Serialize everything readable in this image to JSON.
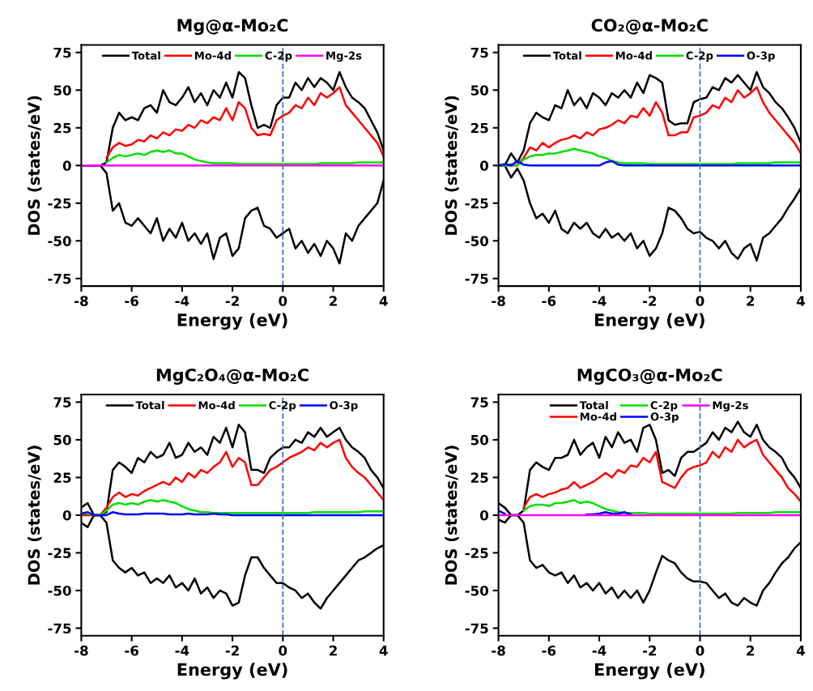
{
  "chart_data": [
    {
      "type": "line",
      "title": "Mg@α-Mo₂C",
      "xlabel": "Energy (eV)",
      "ylabel": "DOS (states/eV)",
      "xlim": [
        -8,
        4
      ],
      "xticks": [
        -8,
        -6,
        -4,
        -2,
        0,
        2,
        4
      ],
      "ylim": [
        -80,
        80
      ],
      "yticks": [
        -75,
        -50,
        -25,
        0,
        25,
        50,
        75
      ],
      "grid": false,
      "legend": "top",
      "marker": "none",
      "line_style": "solid",
      "ref_lines": [
        {
          "axis": "x",
          "value": 0,
          "color": "#4472c4",
          "line_style": "dashed"
        }
      ],
      "x": [
        -8,
        -7.75,
        -7.5,
        -7.25,
        -7,
        -6.75,
        -6.5,
        -6.25,
        -6,
        -5.75,
        -5.5,
        -5.25,
        -5,
        -4.75,
        -4.5,
        -4.25,
        -4,
        -3.75,
        -3.5,
        -3.25,
        -3,
        -2.75,
        -2.5,
        -2.25,
        -2,
        -1.75,
        -1.5,
        -1.25,
        -1,
        -0.75,
        -0.5,
        -0.25,
        0,
        0.25,
        0.5,
        0.75,
        1,
        1.25,
        1.5,
        1.75,
        2,
        2.25,
        2.5,
        2.75,
        3,
        3.25,
        3.5,
        3.75,
        4
      ],
      "series": [
        {
          "name": "Total",
          "color": "#000000",
          "values": [
            0,
            0,
            0,
            0,
            2,
            25,
            35,
            30,
            32,
            30,
            38,
            40,
            35,
            50,
            42,
            40,
            45,
            52,
            42,
            48,
            40,
            50,
            45,
            55,
            45,
            62,
            58,
            40,
            25,
            27,
            25,
            40,
            45,
            45,
            55,
            50,
            58,
            52,
            58,
            55,
            50,
            62,
            52,
            45,
            42,
            38,
            30,
            22,
            10
          ]
        },
        {
          "color": "#000000",
          "values": [
            0,
            0,
            0,
            0,
            -5,
            -30,
            -25,
            -38,
            -40,
            -35,
            -40,
            -45,
            -35,
            -50,
            -42,
            -48,
            -38,
            -50,
            -45,
            -52,
            -45,
            -62,
            -48,
            -45,
            -60,
            -55,
            -35,
            -30,
            -28,
            -40,
            -42,
            -48,
            -45,
            -42,
            -55,
            -50,
            -58,
            -52,
            -60,
            -50,
            -55,
            -65,
            -45,
            -50,
            -40,
            -35,
            -30,
            -25,
            -10
          ]
        },
        {
          "name": "Mo-4d",
          "color": "#ff0000",
          "values": [
            null,
            null,
            null,
            null,
            5,
            12,
            15,
            13,
            14,
            17,
            16,
            20,
            18,
            22,
            20,
            24,
            23,
            27,
            25,
            30,
            28,
            32,
            30,
            38,
            30,
            42,
            38,
            25,
            20,
            21,
            20,
            30,
            33,
            35,
            40,
            38,
            45,
            40,
            48,
            45,
            48,
            52,
            40,
            35,
            30,
            25,
            20,
            15,
            6
          ]
        },
        {
          "name": "C-2p",
          "color": "#00e000",
          "values": [
            null,
            null,
            null,
            null,
            2,
            5,
            7,
            6,
            7,
            8,
            7,
            9,
            10,
            9,
            10,
            8,
            8,
            6,
            4,
            3,
            2,
            1.5,
            1.5,
            1.5,
            1.5,
            1,
            1,
            1,
            1,
            1,
            1,
            1,
            1,
            1,
            1,
            1,
            1,
            1,
            1.5,
            1.5,
            1.5,
            1.5,
            1.5,
            1.5,
            2,
            2,
            2,
            2,
            2
          ]
        },
        {
          "name": "Mg-2s",
          "color": "#ff00ff",
          "values": [
            0,
            0,
            0,
            0,
            0,
            0,
            0,
            0,
            0,
            0,
            0,
            0,
            0,
            0,
            0,
            0,
            0,
            0,
            0,
            0,
            0,
            0,
            0,
            0,
            0,
            0,
            0,
            0,
            0,
            0,
            0,
            0,
            0,
            0,
            0,
            0,
            0,
            0,
            0,
            0,
            0,
            0,
            0,
            0,
            0,
            0,
            0,
            0,
            0
          ]
        }
      ]
    },
    {
      "type": "line",
      "title": "CO₂@α-Mo₂C",
      "xlabel": "Energy (eV)",
      "ylabel": "DOS (states/eV)",
      "xlim": [
        -8,
        4
      ],
      "xticks": [
        -8,
        -6,
        -4,
        -2,
        0,
        2,
        4
      ],
      "ylim": [
        -80,
        80
      ],
      "yticks": [
        -75,
        -50,
        -25,
        0,
        25,
        50,
        75
      ],
      "grid": false,
      "legend": "top",
      "marker": "none",
      "line_style": "solid",
      "ref_lines": [
        {
          "axis": "x",
          "value": 0,
          "color": "#4472c4",
          "line_style": "dashed"
        }
      ],
      "x": [
        -8,
        -7.75,
        -7.5,
        -7.25,
        -7,
        -6.75,
        -6.5,
        -6.25,
        -6,
        -5.75,
        -5.5,
        -5.25,
        -5,
        -4.75,
        -4.5,
        -4.25,
        -4,
        -3.75,
        -3.5,
        -3.25,
        -3,
        -2.75,
        -2.5,
        -2.25,
        -2,
        -1.75,
        -1.5,
        -1.25,
        -1,
        -0.75,
        -0.5,
        -0.25,
        0,
        0.25,
        0.5,
        0.75,
        1,
        1.25,
        1.5,
        1.75,
        2,
        2.25,
        2.5,
        2.75,
        3,
        3.25,
        3.5,
        3.75,
        4
      ],
      "series": [
        {
          "name": "Total",
          "color": "#000000",
          "values": [
            0,
            0,
            8,
            2,
            10,
            28,
            35,
            32,
            30,
            40,
            38,
            50,
            40,
            45,
            38,
            48,
            45,
            40,
            48,
            45,
            50,
            45,
            55,
            48,
            60,
            58,
            55,
            30,
            27,
            28,
            28,
            42,
            44,
            45,
            52,
            50,
            58,
            55,
            60,
            55,
            50,
            62,
            52,
            48,
            42,
            38,
            32,
            25,
            15
          ]
        },
        {
          "color": "#000000",
          "values": [
            0,
            0,
            -8,
            -2,
            -10,
            -25,
            -35,
            -32,
            -38,
            -30,
            -42,
            -45,
            -38,
            -42,
            -38,
            -45,
            -48,
            -42,
            -48,
            -45,
            -50,
            -45,
            -55,
            -50,
            -60,
            -55,
            -45,
            -28,
            -30,
            -35,
            -42,
            -45,
            -44,
            -48,
            -50,
            -55,
            -50,
            -58,
            -62,
            -55,
            -52,
            -63,
            -48,
            -45,
            -40,
            -35,
            -28,
            -22,
            -15
          ]
        },
        {
          "name": "Mo-4d",
          "color": "#ff0000",
          "values": [
            0,
            0,
            0,
            0,
            5,
            12,
            10,
            15,
            12,
            15,
            17,
            18,
            20,
            18,
            22,
            20,
            24,
            25,
            27,
            30,
            28,
            33,
            32,
            38,
            33,
            42,
            35,
            20,
            20,
            22,
            22,
            32,
            33,
            35,
            40,
            38,
            45,
            42,
            50,
            45,
            48,
            52,
            42,
            35,
            30,
            25,
            20,
            15,
            8
          ]
        },
        {
          "name": "C-2p",
          "color": "#00e000",
          "values": [
            0,
            0,
            1,
            0,
            4,
            6,
            7,
            7,
            8,
            8,
            9,
            10,
            11,
            10,
            9,
            8,
            6,
            5,
            3,
            2,
            1.5,
            1.5,
            1.5,
            1.5,
            1,
            1,
            1,
            1,
            1,
            1,
            1,
            1,
            1,
            1,
            1,
            1,
            1,
            1,
            1.5,
            1.5,
            1.5,
            1.5,
            1.5,
            1.5,
            2,
            2,
            2,
            2,
            2
          ]
        },
        {
          "name": "O-3p",
          "color": "#0000ff",
          "values": [
            0,
            1,
            0,
            3,
            0.5,
            0,
            0,
            0,
            0,
            0,
            0,
            0,
            0,
            0,
            0,
            0,
            0,
            2,
            3,
            0.5,
            0,
            0,
            0,
            0,
            0,
            0,
            0,
            0,
            0,
            0,
            0,
            0,
            0,
            0,
            0,
            0,
            0,
            0,
            0,
            0,
            0,
            0,
            0,
            0,
            0,
            0,
            0,
            0,
            0
          ]
        }
      ]
    },
    {
      "type": "line",
      "title": "MgC₂O₄@α-Mo₂C",
      "xlabel": "Energy (eV)",
      "ylabel": "DOS (states/eV)",
      "xlim": [
        -8,
        4
      ],
      "xticks": [
        -8,
        -6,
        -4,
        -2,
        0,
        2,
        4
      ],
      "ylim": [
        -80,
        80
      ],
      "yticks": [
        -75,
        -50,
        -25,
        0,
        25,
        50,
        75
      ],
      "grid": false,
      "legend": "top",
      "marker": "none",
      "line_style": "solid",
      "ref_lines": [
        {
          "axis": "x",
          "value": 0,
          "color": "#4472c4",
          "line_style": "dashed"
        }
      ],
      "x": [
        -8,
        -7.75,
        -7.5,
        -7.25,
        -7,
        -6.75,
        -6.5,
        -6.25,
        -6,
        -5.75,
        -5.5,
        -5.25,
        -5,
        -4.75,
        -4.5,
        -4.25,
        -4,
        -3.75,
        -3.5,
        -3.25,
        -3,
        -2.75,
        -2.5,
        -2.25,
        -2,
        -1.75,
        -1.5,
        -1.25,
        -1,
        -0.75,
        -0.5,
        -0.25,
        0,
        0.25,
        0.5,
        0.75,
        1,
        1.25,
        1.5,
        1.75,
        2,
        2.25,
        2.5,
        2.75,
        3,
        3.25,
        3.5,
        3.75,
        4
      ],
      "series": [
        {
          "name": "Total",
          "color": "#000000",
          "values": [
            5,
            8,
            0,
            0,
            2,
            30,
            35,
            32,
            28,
            38,
            35,
            42,
            38,
            40,
            48,
            38,
            40,
            48,
            42,
            45,
            40,
            52,
            48,
            58,
            45,
            60,
            55,
            30,
            30,
            28,
            38,
            42,
            45,
            45,
            50,
            48,
            55,
            52,
            58,
            52,
            55,
            58,
            50,
            45,
            42,
            38,
            30,
            25,
            18
          ]
        },
        {
          "color": "#000000",
          "values": [
            -5,
            -8,
            0,
            0,
            -5,
            -30,
            -35,
            -38,
            -35,
            -40,
            -38,
            -45,
            -42,
            -45,
            -40,
            -48,
            -45,
            -50,
            -42,
            -52,
            -48,
            -55,
            -50,
            -52,
            -60,
            -58,
            -40,
            -28,
            -28,
            -35,
            -40,
            -45,
            -45,
            -48,
            -50,
            -55,
            -52,
            -58,
            -62,
            -55,
            -50,
            -45,
            -40,
            -35,
            -30,
            -28,
            -25,
            -22,
            -20
          ]
        },
        {
          "name": "Mo-4d",
          "color": "#ff0000",
          "values": [
            0,
            0,
            0,
            0,
            5,
            12,
            15,
            12,
            14,
            13,
            16,
            18,
            20,
            22,
            20,
            25,
            22,
            28,
            25,
            30,
            28,
            32,
            35,
            42,
            32,
            38,
            35,
            20,
            20,
            25,
            30,
            32,
            35,
            38,
            40,
            42,
            45,
            43,
            48,
            45,
            48,
            50,
            38,
            32,
            28,
            25,
            20,
            15,
            10
          ]
        },
        {
          "name": "C-2p",
          "color": "#00e000",
          "values": [
            1,
            1,
            0,
            0,
            3,
            7,
            8,
            7,
            8,
            7,
            9,
            10,
            9,
            10,
            9,
            8,
            6,
            4,
            3,
            2,
            2,
            1.5,
            1.5,
            1.5,
            1.5,
            1.5,
            1.5,
            1.5,
            1.5,
            1.5,
            1.5,
            1.5,
            1.5,
            1.5,
            1.5,
            1.5,
            1.5,
            2,
            2,
            2,
            2,
            2,
            2,
            2,
            2,
            2.5,
            2.5,
            2.5,
            2.5
          ]
        },
        {
          "name": "O-3p",
          "color": "#0000ff",
          "values": [
            1,
            2,
            0,
            0,
            0,
            2,
            1,
            0.5,
            0.5,
            0.5,
            1,
            1,
            1,
            1,
            0.5,
            0.5,
            0.5,
            1,
            0.5,
            0.5,
            0.5,
            1,
            0.5,
            0.5,
            0,
            0,
            0,
            0,
            0,
            0,
            0,
            0,
            0,
            0,
            0,
            0,
            0,
            0,
            0,
            0,
            0,
            0,
            0,
            0,
            0,
            0,
            0,
            0,
            0
          ]
        }
      ]
    },
    {
      "type": "line",
      "title": "MgCO₃@α-Mo₂C",
      "xlabel": "Energy (eV)",
      "ylabel": "DOS (states/eV)",
      "xlim": [
        -8,
        4
      ],
      "xticks": [
        -8,
        -6,
        -4,
        -2,
        0,
        2,
        4
      ],
      "ylim": [
        -80,
        80
      ],
      "yticks": [
        -75,
        -50,
        -25,
        0,
        25,
        50,
        75
      ],
      "grid": false,
      "legend": "top",
      "marker": "none",
      "line_style": "solid",
      "ref_lines": [
        {
          "axis": "x",
          "value": 0,
          "color": "#4472c4",
          "line_style": "dashed"
        }
      ],
      "x": [
        -8,
        -7.75,
        -7.5,
        -7.25,
        -7,
        -6.75,
        -6.5,
        -6.25,
        -6,
        -5.75,
        -5.5,
        -5.25,
        -5,
        -4.75,
        -4.5,
        -4.25,
        -4,
        -3.75,
        -3.5,
        -3.25,
        -3,
        -2.75,
        -2.5,
        -2.25,
        -2,
        -1.75,
        -1.5,
        -1.25,
        -1,
        -0.75,
        -0.5,
        -0.25,
        0,
        0.25,
        0.5,
        0.75,
        1,
        1.25,
        1.5,
        1.75,
        2,
        2.25,
        2.5,
        2.75,
        3,
        3.25,
        3.5,
        3.75,
        4
      ],
      "series": [
        {
          "name": "Total",
          "color": "#000000",
          "values": [
            8,
            5,
            0,
            0,
            3,
            30,
            35,
            32,
            30,
            38,
            38,
            40,
            50,
            40,
            45,
            48,
            38,
            52,
            45,
            55,
            48,
            50,
            42,
            58,
            60,
            50,
            28,
            30,
            26,
            38,
            42,
            42,
            45,
            48,
            55,
            50,
            58,
            55,
            62,
            55,
            52,
            60,
            50,
            45,
            42,
            38,
            30,
            25,
            18
          ]
        },
        {
          "color": "#000000",
          "values": [
            -3,
            -5,
            0,
            0,
            -5,
            -30,
            -35,
            -33,
            -38,
            -40,
            -38,
            -45,
            -40,
            -48,
            -45,
            -50,
            -45,
            -52,
            -48,
            -55,
            -50,
            -55,
            -50,
            -58,
            -50,
            -38,
            -27,
            -30,
            -32,
            -38,
            -42,
            -44,
            -44,
            -45,
            -50,
            -55,
            -52,
            -58,
            -60,
            -55,
            -58,
            -60,
            -50,
            -45,
            -38,
            -32,
            -28,
            -22,
            -18
          ]
        },
        {
          "name": "Mo-4d",
          "color": "#ff0000",
          "values": [
            null,
            null,
            null,
            null,
            5,
            12,
            14,
            12,
            14,
            15,
            17,
            18,
            22,
            18,
            20,
            22,
            25,
            28,
            25,
            30,
            28,
            33,
            32,
            38,
            35,
            42,
            22,
            20,
            18,
            25,
            30,
            32,
            33,
            35,
            42,
            38,
            45,
            42,
            50,
            45,
            48,
            50,
            40,
            35,
            30,
            25,
            18,
            14,
            9
          ]
        },
        {
          "name": "C-2p",
          "color": "#00e000",
          "values": [
            null,
            null,
            null,
            null,
            3,
            6,
            7,
            7,
            6,
            8,
            8,
            9,
            10,
            8,
            9,
            8,
            6,
            4,
            3,
            2,
            1.5,
            1.5,
            1.5,
            1.5,
            1,
            1,
            1,
            1,
            1,
            1,
            1,
            1,
            1,
            1,
            1,
            1,
            1,
            1,
            1.5,
            1.5,
            1.5,
            1.5,
            1.5,
            1.5,
            2,
            2,
            2,
            2,
            2
          ]
        },
        {
          "name": "O-3p",
          "color": "#0000ff",
          "values": [
            3,
            1,
            null,
            null,
            null,
            null,
            null,
            null,
            null,
            null,
            null,
            null,
            null,
            null,
            0.5,
            0.5,
            1,
            2,
            1,
            1,
            2,
            0.5,
            null,
            null,
            null,
            null,
            null,
            null,
            null,
            null,
            null,
            null,
            null,
            null,
            null,
            null,
            null,
            null,
            null,
            null,
            null,
            null,
            null,
            null,
            null,
            null,
            null,
            null,
            null
          ]
        },
        {
          "name": "Mg-2s",
          "color": "#ff00ff",
          "values": [
            0,
            0,
            0,
            0,
            0,
            0,
            0,
            0,
            0,
            0,
            0,
            0,
            0,
            0,
            0,
            0,
            0,
            0,
            0,
            0,
            0,
            0,
            0,
            0,
            0,
            0,
            0,
            0,
            0,
            0,
            0,
            0,
            0,
            0,
            0,
            0,
            0,
            0,
            0,
            0,
            0,
            0,
            0,
            0,
            0,
            0,
            0,
            0,
            0
          ]
        }
      ]
    }
  ]
}
